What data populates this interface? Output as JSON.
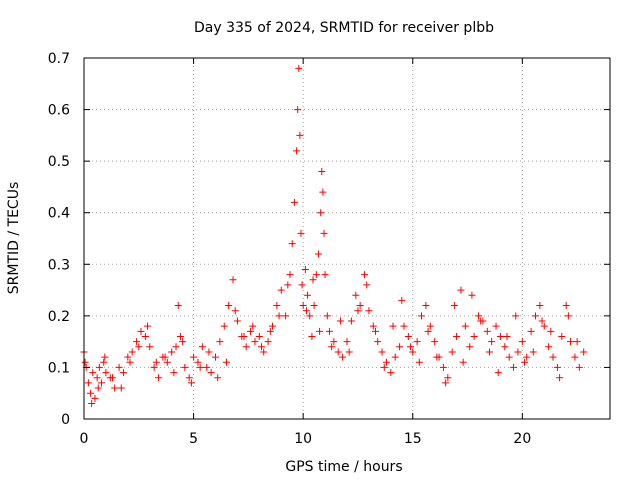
{
  "chart_data": {
    "type": "scatter",
    "title": "Day 335 of 2024, SRMTID for receiver plbb",
    "xlabel": "GPS time / hours",
    "ylabel": "SRMTID / TECUs",
    "xlim": [
      0,
      24
    ],
    "ylim": [
      0,
      0.7
    ],
    "xticks": [
      0,
      5,
      10,
      15,
      20
    ],
    "xtick_labels": [
      "0",
      "5",
      "10",
      "15",
      "20"
    ],
    "yticks": [
      0,
      0.1,
      0.2,
      0.3,
      0.4,
      0.5,
      0.6,
      0.7
    ],
    "ytick_labels": [
      "0",
      "0.1",
      "0.2",
      "0.3",
      "0.4",
      "0.5",
      "0.6",
      "0.7"
    ],
    "grid": true,
    "marker": "plus",
    "color": "#ff0000",
    "series": [
      {
        "name": "SRMTID",
        "x": [
          0.0,
          0.1,
          0.2,
          0.3,
          0.4,
          0.5,
          0.6,
          0.7,
          0.8,
          0.9,
          1.0,
          1.2,
          1.4,
          1.6,
          1.8,
          2.0,
          2.2,
          2.4,
          2.6,
          2.8,
          3.0,
          3.2,
          3.4,
          3.6,
          3.8,
          4.0,
          4.2,
          4.3,
          4.4,
          4.6,
          4.8,
          5.0,
          5.2,
          5.4,
          5.6,
          5.8,
          6.0,
          6.2,
          6.4,
          6.6,
          6.8,
          7.0,
          7.2,
          7.4,
          7.6,
          7.8,
          8.0,
          8.2,
          8.4,
          8.6,
          8.8,
          9.0,
          9.2,
          9.4,
          9.5,
          9.6,
          9.7,
          9.75,
          9.8,
          9.85,
          9.9,
          9.95,
          10.0,
          10.1,
          10.2,
          10.3,
          10.4,
          10.5,
          10.6,
          10.7,
          10.8,
          10.85,
          10.9,
          10.95,
          11.0,
          11.1,
          11.2,
          11.4,
          11.6,
          11.8,
          12.0,
          12.2,
          12.4,
          12.6,
          12.8,
          13.0,
          13.2,
          13.4,
          13.6,
          13.8,
          14.0,
          14.2,
          14.4,
          14.6,
          14.8,
          15.0,
          15.2,
          15.4,
          15.6,
          15.8,
          16.0,
          16.2,
          16.4,
          16.6,
          16.8,
          17.0,
          17.2,
          17.4,
          17.6,
          17.8,
          18.0,
          18.2,
          18.4,
          18.6,
          18.8,
          19.0,
          19.2,
          19.4,
          19.6,
          19.8,
          20.0,
          20.2,
          20.4,
          20.6,
          20.8,
          21.0,
          21.2,
          21.4,
          21.6,
          21.8,
          22.0,
          22.2,
          22.4,
          22.6,
          22.8,
          0.05,
          0.35,
          0.65,
          0.95,
          1.3,
          1.7,
          2.1,
          2.5,
          2.9,
          3.3,
          3.7,
          4.1,
          4.5,
          4.9,
          5.3,
          5.7,
          6.1,
          6.5,
          6.9,
          7.3,
          7.7,
          8.1,
          8.5,
          8.9,
          9.3,
          10.15,
          10.45,
          10.75,
          11.3,
          11.7,
          12.1,
          12.5,
          12.9,
          13.3,
          13.7,
          14.1,
          14.5,
          14.9,
          15.3,
          15.7,
          16.1,
          16.5,
          16.9,
          17.3,
          17.7,
          18.1,
          18.5,
          18.9,
          19.3,
          19.7,
          20.1,
          20.5,
          20.9,
          21.3,
          21.7,
          22.1,
          22.5
        ],
        "y": [
          0.13,
          0.1,
          0.07,
          0.05,
          0.09,
          0.04,
          0.08,
          0.1,
          0.07,
          0.11,
          0.09,
          0.08,
          0.06,
          0.1,
          0.09,
          0.12,
          0.13,
          0.15,
          0.17,
          0.16,
          0.14,
          0.1,
          0.08,
          0.12,
          0.11,
          0.13,
          0.14,
          0.22,
          0.16,
          0.1,
          0.08,
          0.12,
          0.11,
          0.14,
          0.1,
          0.09,
          0.12,
          0.15,
          0.18,
          0.22,
          0.27,
          0.19,
          0.16,
          0.14,
          0.17,
          0.15,
          0.16,
          0.13,
          0.15,
          0.18,
          0.22,
          0.25,
          0.2,
          0.28,
          0.34,
          0.42,
          0.52,
          0.6,
          0.68,
          0.55,
          0.36,
          0.26,
          0.22,
          0.29,
          0.24,
          0.2,
          0.16,
          0.22,
          0.28,
          0.32,
          0.4,
          0.48,
          0.44,
          0.36,
          0.28,
          0.2,
          0.17,
          0.15,
          0.13,
          0.12,
          0.15,
          0.19,
          0.24,
          0.22,
          0.28,
          0.21,
          0.18,
          0.15,
          0.13,
          0.11,
          0.09,
          0.12,
          0.14,
          0.18,
          0.16,
          0.13,
          0.15,
          0.2,
          0.22,
          0.18,
          0.15,
          0.12,
          0.1,
          0.08,
          0.13,
          0.16,
          0.25,
          0.18,
          0.14,
          0.16,
          0.2,
          0.19,
          0.17,
          0.15,
          0.18,
          0.16,
          0.14,
          0.12,
          0.1,
          0.13,
          0.15,
          0.12,
          0.17,
          0.2,
          0.22,
          0.18,
          0.14,
          0.12,
          0.1,
          0.16,
          0.22,
          0.15,
          0.12,
          0.1,
          0.13,
          0.11,
          0.03,
          0.06,
          0.12,
          0.08,
          0.06,
          0.11,
          0.14,
          0.18,
          0.11,
          0.12,
          0.09,
          0.15,
          0.07,
          0.1,
          0.13,
          0.08,
          0.11,
          0.21,
          0.16,
          0.18,
          0.14,
          0.17,
          0.2,
          0.26,
          0.21,
          0.27,
          0.17,
          0.14,
          0.19,
          0.13,
          0.21,
          0.26,
          0.17,
          0.1,
          0.18,
          0.23,
          0.14,
          0.11,
          0.17,
          0.12,
          0.07,
          0.22,
          0.11,
          0.24,
          0.19,
          0.13,
          0.09,
          0.16,
          0.2,
          0.11,
          0.13,
          0.19,
          0.17,
          0.08,
          0.2,
          0.15
        ]
      }
    ]
  }
}
